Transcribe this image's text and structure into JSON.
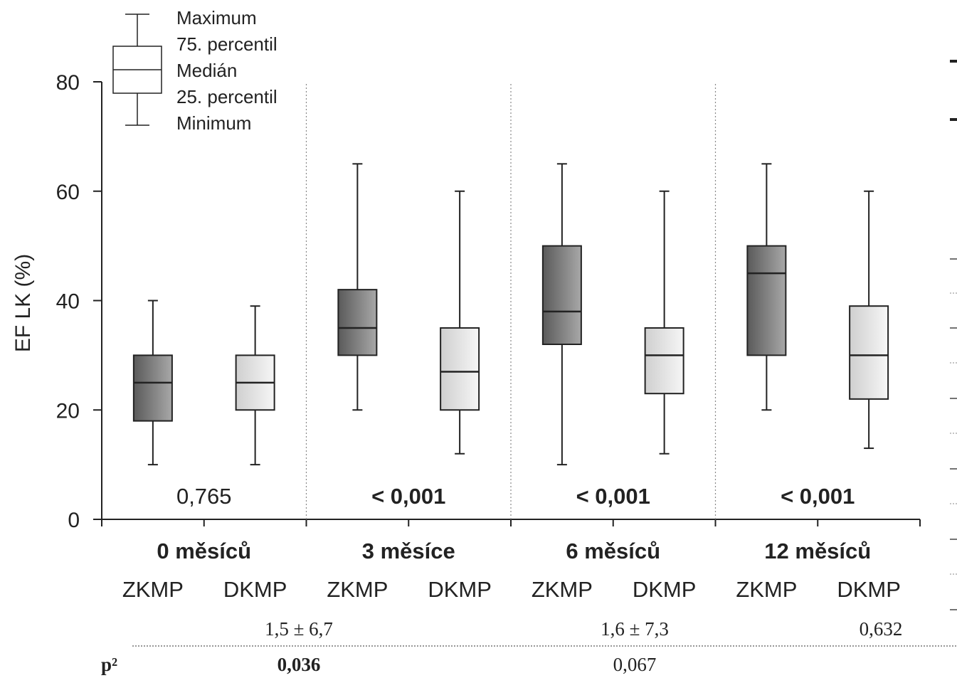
{
  "chart_data": {
    "type": "boxplot",
    "ylabel": "EF LK (%)",
    "ylim": [
      0,
      80
    ],
    "yticks": [
      "0",
      "20",
      "40",
      "60",
      "80"
    ],
    "legend": {
      "placement": "top-left",
      "labels": [
        "Maximum",
        "75. percentil",
        "Medián",
        "25. percentil",
        "Minimum"
      ]
    },
    "groups": [
      {
        "label": "0 měsíců",
        "p_value": "0,765",
        "p_bold": false,
        "boxes": [
          {
            "name": "ZKMP",
            "min": 10,
            "q1": 18,
            "median": 25,
            "q3": 30,
            "max": 40
          },
          {
            "name": "DKMP",
            "min": 10,
            "q1": 20,
            "median": 25,
            "q3": 30,
            "max": 39
          }
        ]
      },
      {
        "label": "3 měsíce",
        "p_value": "< 0,001",
        "p_bold": true,
        "boxes": [
          {
            "name": "ZKMP",
            "min": 20,
            "q1": 30,
            "median": 35,
            "q3": 42,
            "max": 65
          },
          {
            "name": "DKMP",
            "min": 12,
            "q1": 20,
            "median": 27,
            "q3": 35,
            "max": 60
          }
        ]
      },
      {
        "label": "6 měsíců",
        "p_value": "< 0,001",
        "p_bold": true,
        "boxes": [
          {
            "name": "ZKMP",
            "min": 10,
            "q1": 32,
            "median": 38,
            "q3": 50,
            "max": 65
          },
          {
            "name": "DKMP",
            "min": 12,
            "q1": 23,
            "median": 30,
            "q3": 35,
            "max": 60
          }
        ]
      },
      {
        "label": "12 měsíců",
        "p_value": "< 0,001",
        "p_bold": true,
        "boxes": [
          {
            "name": "ZKMP",
            "min": 20,
            "q1": 30,
            "median": 45,
            "q3": 50,
            "max": 65
          },
          {
            "name": "DKMP",
            "min": 13,
            "q1": 22,
            "median": 30,
            "q3": 39,
            "max": 60
          }
        ]
      }
    ],
    "colors": {
      "zkmp_dark": "#5a5a5a",
      "zkmp_light": "#a8a8a8",
      "dkmp_dark": "#cfcfcf",
      "dkmp_light": "#f6f6f6"
    }
  },
  "table": {
    "row1": [
      "1,5 ± 6,7",
      "1,6 ± 7,3",
      "0,632"
    ],
    "row2_label": "p²",
    "row2": [
      "0,036",
      "0,067"
    ]
  }
}
